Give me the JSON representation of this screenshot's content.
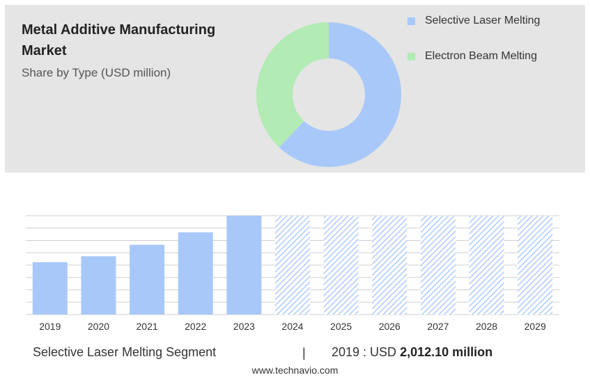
{
  "header": {
    "title": "Metal Additive Manufacturing Market",
    "subtitle": "Share by Type (USD million)"
  },
  "legend": [
    {
      "label": "Selective Laser Melting",
      "color": "#a8c8fa"
    },
    {
      "label": "Electron Beam Melting",
      "color": "#b2ebb4"
    }
  ],
  "colors": {
    "bar": "#a8c8fa",
    "forecast_hatch": "#a8c8fa",
    "panel": "#e5e5e5",
    "grid": "#cfcfcf"
  },
  "footer": {
    "segment": "Selective Laser Melting Segment",
    "divider": "|",
    "value_prefix": "2019 : USD",
    "value_bold": "2,012.10 million"
  },
  "site": "www.technavio.com",
  "chart_data": [
    {
      "type": "pie",
      "variant": "donut",
      "labels": [
        "Selective Laser Melting",
        "Electron Beam Melting"
      ],
      "values": [
        62,
        38
      ],
      "unit": "%"
    },
    {
      "type": "bar",
      "categories": [
        "2019",
        "2020",
        "2021",
        "2022",
        "2023",
        "2024",
        "2025",
        "2026",
        "2027",
        "2028",
        "2029"
      ],
      "values": [
        2012.1,
        2240,
        2680,
        3160,
        3800,
        null,
        null,
        null,
        null,
        null,
        null
      ],
      "forecast_categories": [
        "2024",
        "2025",
        "2026",
        "2027",
        "2028",
        "2029"
      ],
      "ylim": [
        0,
        3800
      ],
      "grid": true,
      "xlabel": "",
      "ylabel": ""
    }
  ]
}
